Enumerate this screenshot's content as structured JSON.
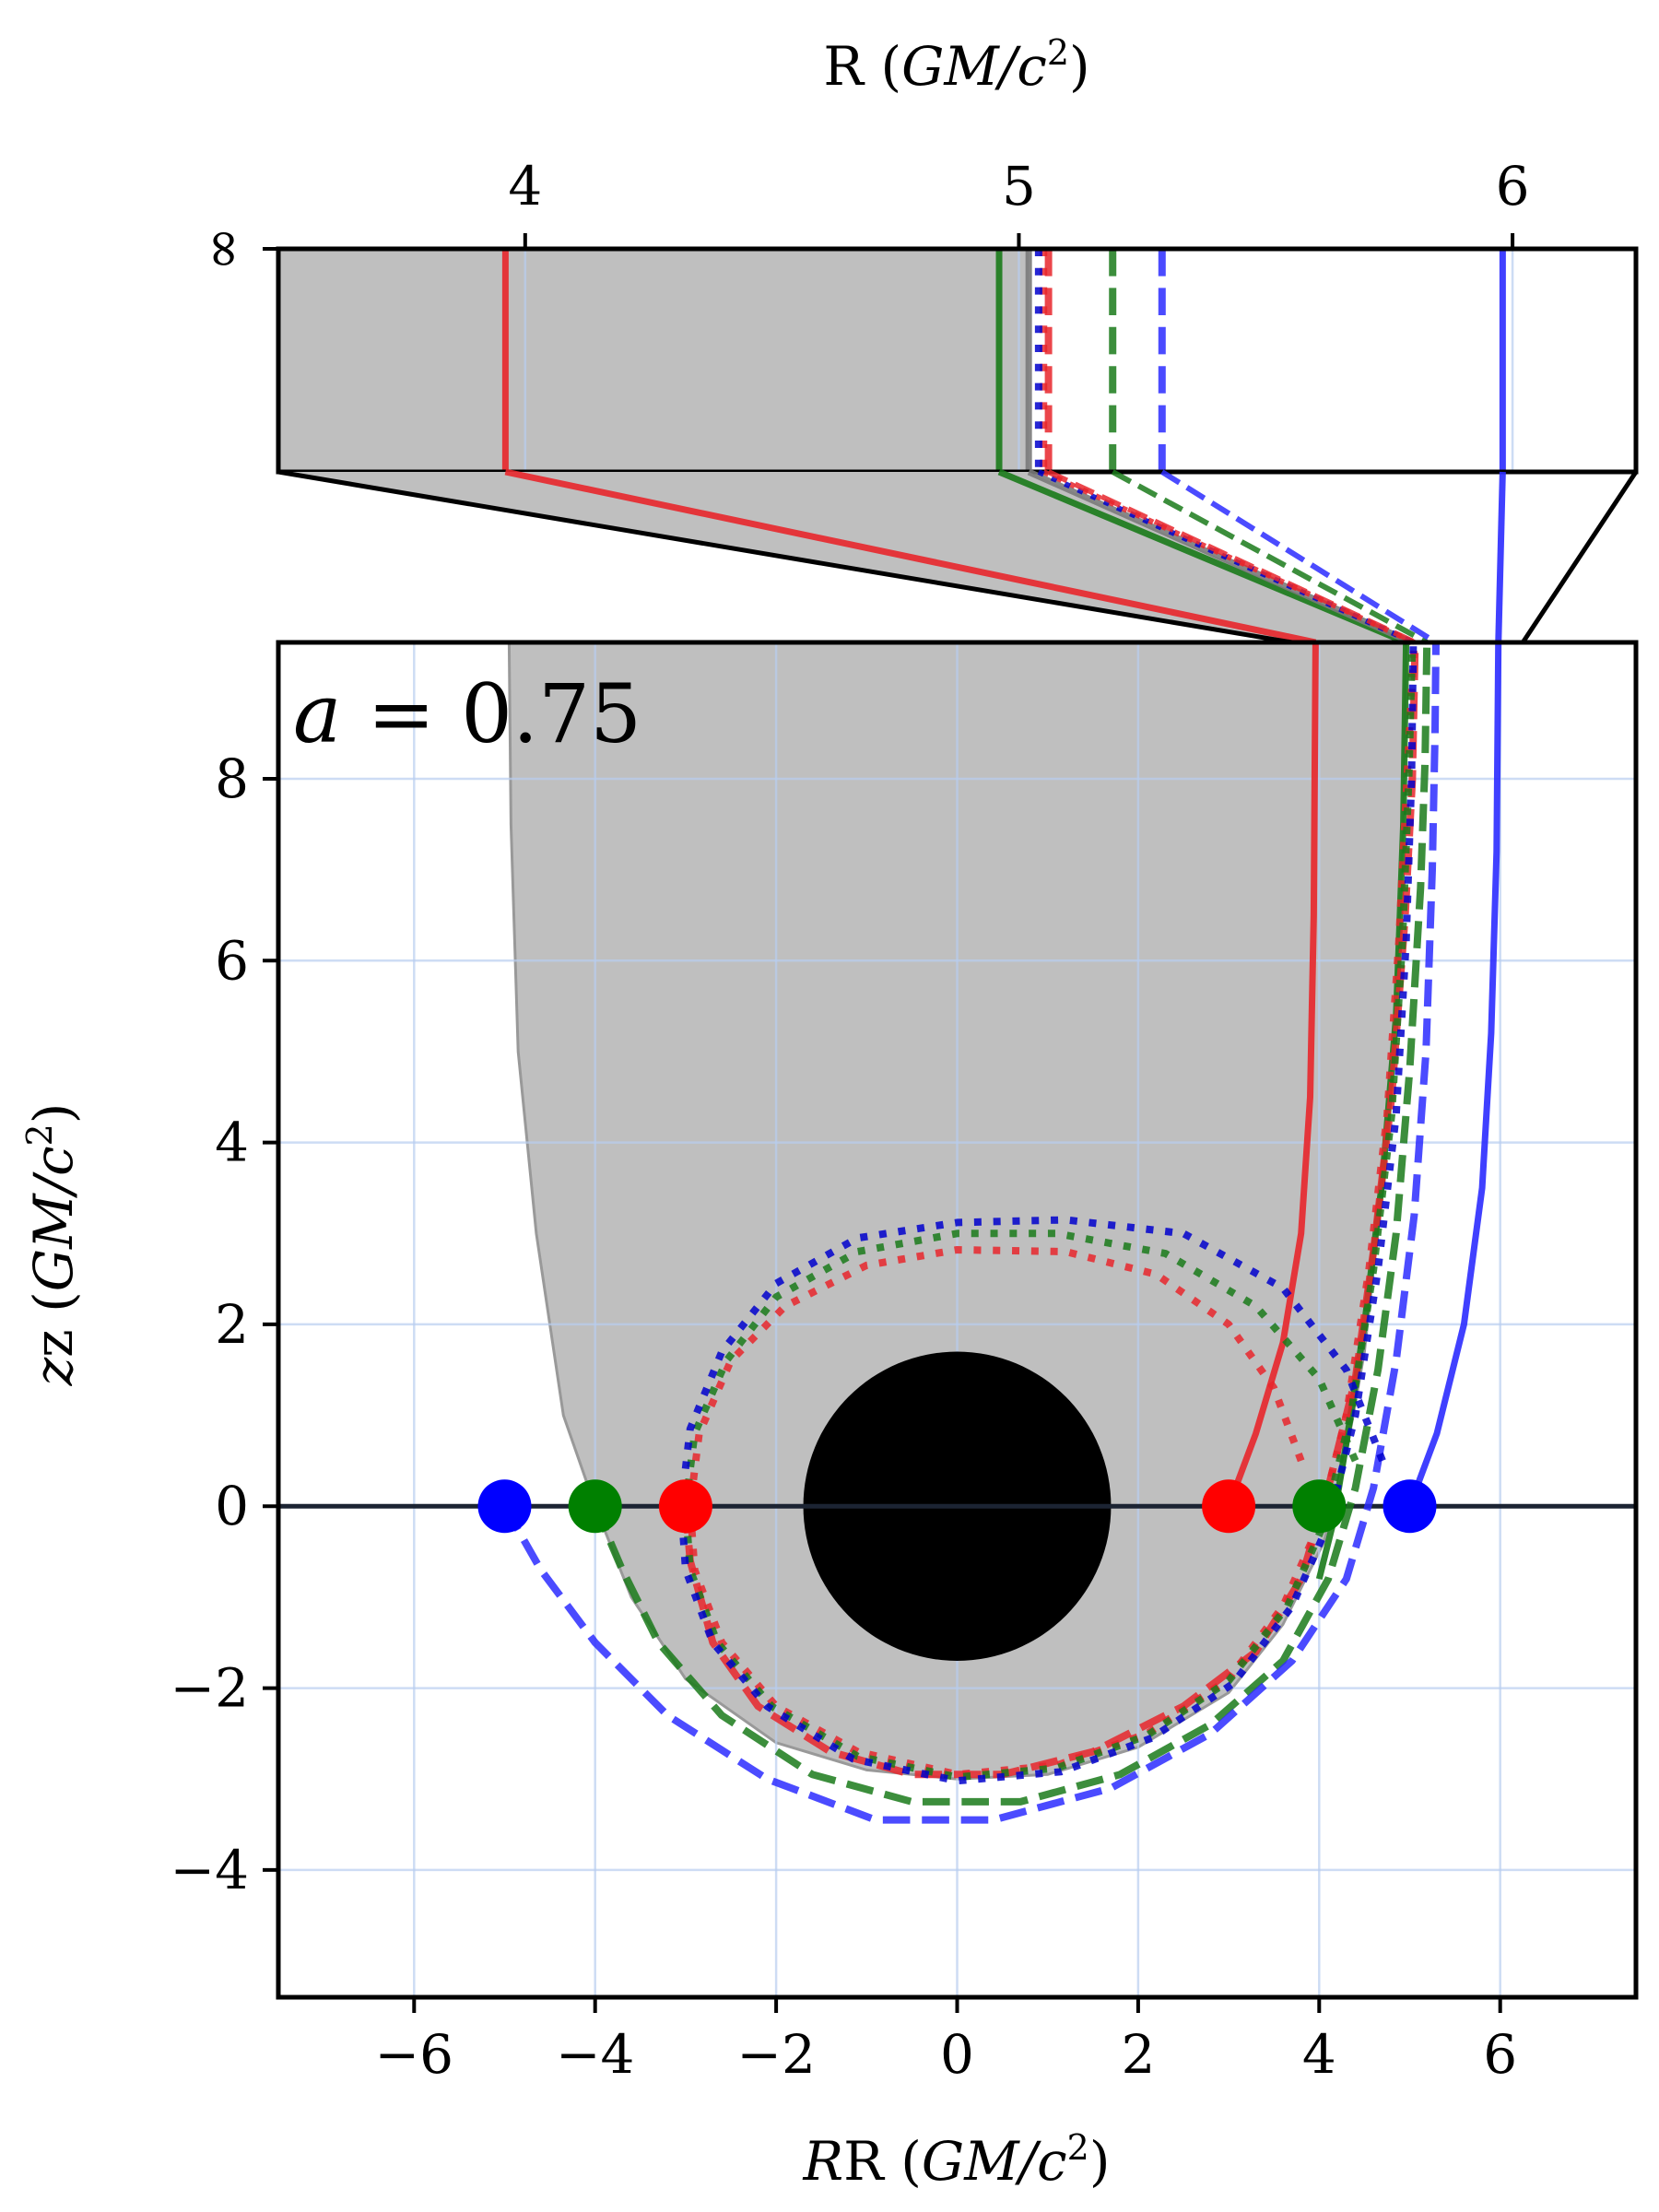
{
  "chart_data": [
    {
      "panel": "inset",
      "type": "line",
      "xlabel": "R (GM/c²)",
      "xlabel_main": "R (",
      "xlabel_unit": "GM/c",
      "xlabel_sup": "2",
      "xlabel_end": ")",
      "xlim": [
        3.5,
        6.25
      ],
      "xticks": [
        4,
        5,
        6
      ],
      "xtick_labels": [
        "4",
        "5",
        "6"
      ],
      "ytick_labels": [
        "∞"
      ],
      "shaded_region": {
        "R_left": 3.5,
        "R_right": 5.02,
        "color": "#bfbfbf"
      },
      "asymptotic_R": [
        {
          "color": "#e8262b",
          "style": "solid",
          "R": 3.96
        },
        {
          "color": "#1a7a1a",
          "style": "solid",
          "R": 4.96
        },
        {
          "color": "#7a7a7a",
          "style": "solid",
          "R": 5.02
        },
        {
          "color": "#e8262b",
          "style": "dotted",
          "R": 5.05
        },
        {
          "color": "#0000cc",
          "style": "dotted",
          "R": 5.04
        },
        {
          "color": "#e8262b",
          "style": "dashed",
          "R": 5.06
        },
        {
          "color": "#1a7a1a",
          "style": "dashed",
          "R": 5.19
        },
        {
          "color": "#2b2bff",
          "style": "dashed",
          "R": 5.29
        },
        {
          "color": "#2b2bff",
          "style": "solid",
          "R": 5.98
        }
      ]
    },
    {
      "panel": "main",
      "type": "line",
      "annotation": "a = 0.75",
      "annotation_var": "a",
      "annotation_eq": " = 0.75",
      "xlabel_main": "R (",
      "xlabel_unit": "GM/c",
      "xlabel_sup": "2",
      "xlabel_end": ")",
      "ylabel_main": "z (",
      "ylabel_unit": "GM/c",
      "ylabel_sup": "2",
      "ylabel_end": ")",
      "xlim": [
        -7.5,
        7.5
      ],
      "ylim": [
        -5.4,
        9.5
      ],
      "xticks": [
        -6,
        -4,
        -2,
        0,
        2,
        4,
        6
      ],
      "xtick_labels": [
        "−6",
        "−4",
        "−2",
        "0",
        "2",
        "4",
        "6"
      ],
      "yticks": [
        -4,
        -2,
        0,
        2,
        4,
        6,
        8
      ],
      "ytick_labels": [
        "−4",
        "−2",
        "0",
        "2",
        "4",
        "6",
        "8"
      ],
      "grid": true,
      "black_hole_radius": 1.7,
      "equator_z": 0,
      "shaded_region": {
        "boundary": [
          [
            -4.95,
            9.5
          ],
          [
            -4.93,
            7.5
          ],
          [
            -4.85,
            5
          ],
          [
            -4.65,
            3
          ],
          [
            -4.35,
            1
          ],
          [
            -4.0,
            0
          ],
          [
            -3.6,
            -1
          ],
          [
            -3.0,
            -1.9
          ],
          [
            -2,
            -2.6
          ],
          [
            -1,
            -2.9
          ],
          [
            0,
            -3.0
          ],
          [
            1,
            -2.95
          ],
          [
            2,
            -2.65
          ],
          [
            3,
            -2.05
          ],
          [
            3.6,
            -1.3
          ],
          [
            4.05,
            -0.4
          ],
          [
            4.25,
            0.3
          ],
          [
            4.5,
            1.7
          ],
          [
            4.7,
            3.5
          ],
          [
            4.85,
            5.5
          ],
          [
            4.93,
            7.5
          ],
          [
            4.96,
            9.5
          ]
        ],
        "color": "#bfbfbf"
      },
      "series": [
        {
          "color": "#e8262b",
          "style": "solid",
          "points": [
            [
              3.0,
              0
            ],
            [
              3.3,
              0.8
            ],
            [
              3.6,
              1.8
            ],
            [
              3.8,
              3.0
            ],
            [
              3.9,
              4.5
            ],
            [
              3.94,
              6.5
            ],
            [
              3.96,
              9.5
            ]
          ]
        },
        {
          "color": "#1a7a1a",
          "style": "solid",
          "points": [
            [
              4.0,
              -0.8
            ],
            [
              4.15,
              -0.2
            ],
            [
              4.3,
              0.7
            ],
            [
              4.5,
              2.0
            ],
            [
              4.7,
              3.6
            ],
            [
              4.85,
              5.4
            ],
            [
              4.93,
              7.5
            ],
            [
              4.96,
              9.5
            ]
          ]
        },
        {
          "color": "#2b2bff",
          "style": "solid",
          "points": [
            [
              5.0,
              0
            ],
            [
              5.3,
              0.8
            ],
            [
              5.6,
              2.0
            ],
            [
              5.8,
              3.5
            ],
            [
              5.9,
              5.2
            ],
            [
              5.96,
              7.2
            ],
            [
              5.98,
              9.5
            ]
          ]
        },
        {
          "color": "#e8262b",
          "style": "dashed",
          "points": [
            [
              -3.0,
              0
            ],
            [
              -2.95,
              -0.6
            ],
            [
              -2.7,
              -1.5
            ],
            [
              -2.2,
              -2.2
            ],
            [
              -1.4,
              -2.7
            ],
            [
              -0.5,
              -2.95
            ],
            [
              0.5,
              -2.95
            ],
            [
              1.5,
              -2.7
            ],
            [
              2.5,
              -2.2
            ],
            [
              3.3,
              -1.6
            ],
            [
              3.8,
              -0.8
            ],
            [
              4.1,
              0.2
            ],
            [
              4.4,
              1.4
            ],
            [
              4.6,
              2.8
            ],
            [
              4.8,
              4.5
            ],
            [
              4.95,
              6.5
            ],
            [
              5.03,
              8.0
            ],
            [
              5.06,
              9.5
            ]
          ]
        },
        {
          "color": "#1a7a1a",
          "style": "dashed",
          "points": [
            [
              -4.0,
              0
            ],
            [
              -3.7,
              -0.7
            ],
            [
              -3.3,
              -1.5
            ],
            [
              -2.6,
              -2.3
            ],
            [
              -1.6,
              -2.95
            ],
            [
              -0.5,
              -3.25
            ],
            [
              0.7,
              -3.25
            ],
            [
              1.8,
              -2.95
            ],
            [
              2.8,
              -2.4
            ],
            [
              3.6,
              -1.7
            ],
            [
              4.1,
              -0.8
            ],
            [
              4.4,
              0.2
            ],
            [
              4.65,
              1.5
            ],
            [
              4.85,
              3.0
            ],
            [
              5.0,
              4.8
            ],
            [
              5.12,
              6.8
            ],
            [
              5.17,
              8.2
            ],
            [
              5.19,
              9.5
            ]
          ]
        },
        {
          "color": "#2b2bff",
          "style": "dashed",
          "points": [
            [
              -5.0,
              0
            ],
            [
              -4.6,
              -0.7
            ],
            [
              -4.0,
              -1.5
            ],
            [
              -3.2,
              -2.3
            ],
            [
              -2.1,
              -3.0
            ],
            [
              -0.9,
              -3.45
            ],
            [
              0.4,
              -3.45
            ],
            [
              1.7,
              -3.1
            ],
            [
              2.8,
              -2.5
            ],
            [
              3.7,
              -1.7
            ],
            [
              4.3,
              -0.8
            ],
            [
              4.6,
              0.2
            ],
            [
              4.85,
              1.6
            ],
            [
              5.05,
              3.2
            ],
            [
              5.18,
              5.0
            ],
            [
              5.25,
              7.0
            ],
            [
              5.28,
              8.5
            ],
            [
              5.29,
              9.5
            ]
          ]
        },
        {
          "color": "#e8262b",
          "style": "dotted",
          "points": [
            [
              3.8,
              0.5
            ],
            [
              3.5,
              1.3
            ],
            [
              3.0,
              2.0
            ],
            [
              2.2,
              2.55
            ],
            [
              1.2,
              2.8
            ],
            [
              0,
              2.82
            ],
            [
              -1.0,
              2.65
            ],
            [
              -1.9,
              2.2
            ],
            [
              -2.5,
              1.6
            ],
            [
              -2.85,
              0.8
            ],
            [
              -2.95,
              0
            ],
            [
              -2.9,
              -0.7
            ],
            [
              -2.6,
              -1.5
            ],
            [
              -2.0,
              -2.2
            ],
            [
              -1.1,
              -2.7
            ],
            [
              0,
              -2.95
            ],
            [
              1.1,
              -2.85
            ],
            [
              2.1,
              -2.5
            ],
            [
              3.0,
              -1.9
            ],
            [
              3.6,
              -1.1
            ],
            [
              4.0,
              -0.2
            ],
            [
              4.3,
              1.0
            ],
            [
              4.55,
              2.6
            ],
            [
              4.75,
              4.3
            ],
            [
              4.88,
              6.2
            ],
            [
              4.97,
              8.0
            ],
            [
              5.05,
              9.5
            ]
          ]
        },
        {
          "color": "#1a7a1a",
          "style": "dotted",
          "points": [
            [
              4.4,
              0.5
            ],
            [
              4.0,
              1.4
            ],
            [
              3.3,
              2.2
            ],
            [
              2.3,
              2.78
            ],
            [
              1.1,
              3.0
            ],
            [
              0,
              3.0
            ],
            [
              -1.1,
              2.8
            ],
            [
              -2.0,
              2.3
            ],
            [
              -2.55,
              1.6
            ],
            [
              -2.9,
              0.8
            ],
            [
              -3.0,
              0
            ],
            [
              -2.95,
              -0.7
            ],
            [
              -2.65,
              -1.5
            ],
            [
              -2.05,
              -2.2
            ],
            [
              -1.1,
              -2.75
            ],
            [
              0,
              -2.98
            ],
            [
              1.1,
              -2.88
            ],
            [
              2.1,
              -2.52
            ],
            [
              3.0,
              -1.92
            ],
            [
              3.65,
              -1.1
            ],
            [
              4.05,
              -0.2
            ],
            [
              4.35,
              1.0
            ],
            [
              4.6,
              2.6
            ],
            [
              4.8,
              4.3
            ],
            [
              4.92,
              6.2
            ],
            [
              4.99,
              8.0
            ],
            [
              5.03,
              9.5
            ]
          ]
        },
        {
          "color": "#0000cc",
          "style": "dotted",
          "points": [
            [
              4.7,
              0.5
            ],
            [
              4.3,
              1.5
            ],
            [
              3.6,
              2.4
            ],
            [
              2.5,
              3.0
            ],
            [
              1.2,
              3.15
            ],
            [
              0,
              3.12
            ],
            [
              -1.1,
              2.95
            ],
            [
              -2.0,
              2.45
            ],
            [
              -2.6,
              1.7
            ],
            [
              -2.95,
              0.85
            ],
            [
              -3.05,
              0
            ],
            [
              -3.0,
              -0.7
            ],
            [
              -2.7,
              -1.5
            ],
            [
              -2.1,
              -2.2
            ],
            [
              -1.15,
              -2.78
            ],
            [
              0,
              -3.02
            ],
            [
              1.15,
              -2.92
            ],
            [
              2.15,
              -2.55
            ],
            [
              3.05,
              -1.95
            ],
            [
              3.7,
              -1.1
            ],
            [
              4.1,
              -0.2
            ],
            [
              4.4,
              1.0
            ],
            [
              4.65,
              2.6
            ],
            [
              4.85,
              4.3
            ],
            [
              4.96,
              6.2
            ],
            [
              5.02,
              8.0
            ],
            [
              5.04,
              9.5
            ]
          ]
        }
      ],
      "markers": [
        {
          "color": "#ff0000",
          "R": 3.0,
          "z": 0
        },
        {
          "color": "#008000",
          "R": 4.0,
          "z": 0
        },
        {
          "color": "#0000ff",
          "R": 5.0,
          "z": 0
        },
        {
          "color": "#ff0000",
          "R": -3.0,
          "z": 0
        },
        {
          "color": "#008000",
          "R": -4.0,
          "z": 0
        },
        {
          "color": "#0000ff",
          "R": -5.0,
          "z": 0
        }
      ]
    }
  ]
}
